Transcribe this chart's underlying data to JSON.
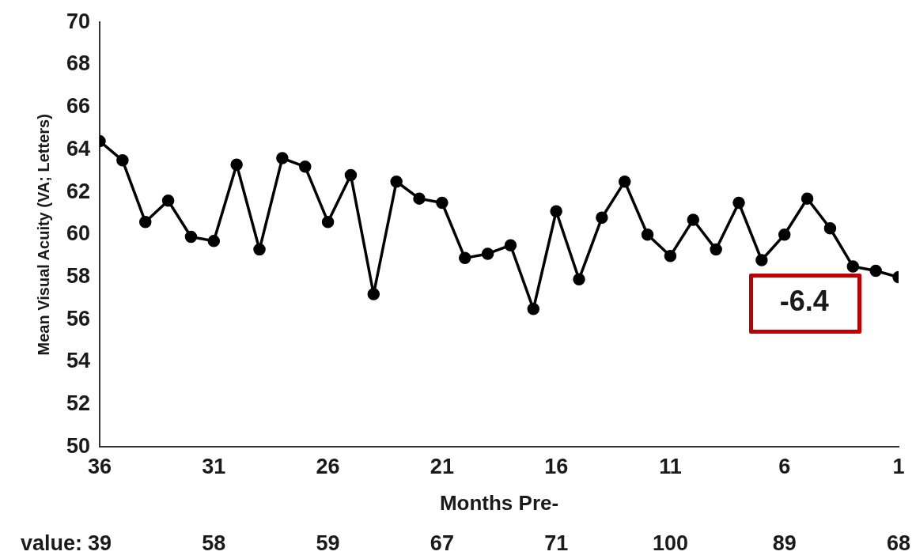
{
  "chart_data": {
    "type": "line",
    "xlabel": "Months Pre-",
    "ylabel": "Mean Visual Acuity (VA; Letters)",
    "x": [
      36,
      35,
      34,
      33,
      32,
      31,
      30,
      29,
      28,
      27,
      26,
      25,
      24,
      23,
      22,
      21,
      20,
      19,
      18,
      17,
      16,
      15,
      14,
      13,
      12,
      11,
      10,
      9,
      8,
      7,
      6,
      5,
      4,
      3,
      2,
      1
    ],
    "series": [
      {
        "color": "#000000",
        "values": [
          64.4,
          63.5,
          60.6,
          61.6,
          59.9,
          59.7,
          63.3,
          59.3,
          63.6,
          63.2,
          60.6,
          62.8,
          57.2,
          62.5,
          61.7,
          61.5,
          58.9,
          59.1,
          59.5,
          56.5,
          61.1,
          57.9,
          60.8,
          62.5,
          60.0,
          59.0,
          60.7,
          59.3,
          61.5,
          58.8,
          60.0,
          61.7,
          60.3,
          58.5,
          58.3,
          58.0
        ]
      }
    ],
    "xlim": [
      36,
      1
    ],
    "xticks": [
      36,
      31,
      26,
      21,
      16,
      11,
      6,
      1
    ],
    "ylim": [
      50,
      70
    ],
    "yticks": [
      50,
      52,
      54,
      56,
      58,
      60,
      62,
      64,
      66,
      68,
      70
    ],
    "grid": false,
    "legend": false,
    "marker": "circle",
    "line_style": "solid",
    "annotations": [
      "-6.4",
      "value:",
      "39",
      "58",
      "59",
      "67",
      "71",
      "100",
      "89",
      "68"
    ]
  }
}
